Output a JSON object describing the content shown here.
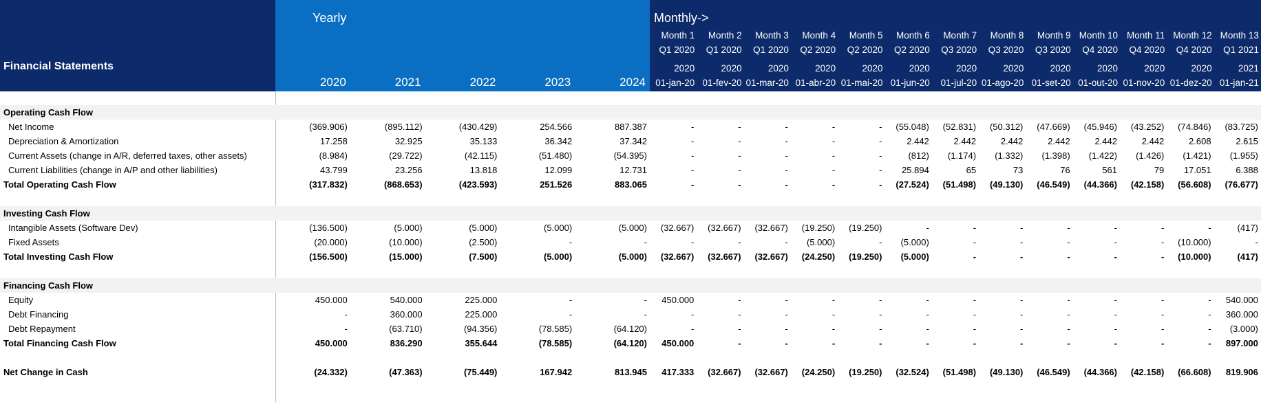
{
  "title": "Financial Statements",
  "yearly_label": "Yearly",
  "monthly_label": "Monthly->",
  "years": [
    "2020",
    "2021",
    "2022",
    "2023",
    "2024"
  ],
  "months": [
    {
      "name": "Month 1",
      "quarter": "Q1 2020",
      "year": "2020",
      "date": "01-jan-20"
    },
    {
      "name": "Month 2",
      "quarter": "Q1 2020",
      "year": "2020",
      "date": "01-fev-20"
    },
    {
      "name": "Month 3",
      "quarter": "Q1 2020",
      "year": "2020",
      "date": "01-mar-20"
    },
    {
      "name": "Month 4",
      "quarter": "Q2 2020",
      "year": "2020",
      "date": "01-abr-20"
    },
    {
      "name": "Month 5",
      "quarter": "Q2 2020",
      "year": "2020",
      "date": "01-mai-20"
    },
    {
      "name": "Month 6",
      "quarter": "Q2 2020",
      "year": "2020",
      "date": "01-jun-20"
    },
    {
      "name": "Month 7",
      "quarter": "Q3 2020",
      "year": "2020",
      "date": "01-jul-20"
    },
    {
      "name": "Month 8",
      "quarter": "Q3 2020",
      "year": "2020",
      "date": "01-ago-20"
    },
    {
      "name": "Month 9",
      "quarter": "Q3 2020",
      "year": "2020",
      "date": "01-set-20"
    },
    {
      "name": "Month 10",
      "quarter": "Q4 2020",
      "year": "2020",
      "date": "01-out-20"
    },
    {
      "name": "Month 11",
      "quarter": "Q4 2020",
      "year": "2020",
      "date": "01-nov-20"
    },
    {
      "name": "Month 12",
      "quarter": "Q4 2020",
      "year": "2020",
      "date": "01-dez-20"
    },
    {
      "name": "Month 13",
      "quarter": "Q1 2021",
      "year": "2021",
      "date": "01-jan-21"
    }
  ],
  "sections": [
    {
      "title": "Operating Cash Flow",
      "rows": [
        {
          "label": "Net Income",
          "values": [
            "(369.906)",
            "(895.112)",
            "(430.429)",
            "254.566",
            "887.387",
            "-",
            "-",
            "-",
            "-",
            "-",
            "(55.048)",
            "(52.831)",
            "(50.312)",
            "(47.669)",
            "(45.946)",
            "(43.252)",
            "(74.846)",
            "(83.725)"
          ]
        },
        {
          "label": "Depreciation & Amortization",
          "values": [
            "17.258",
            "32.925",
            "35.133",
            "36.342",
            "37.342",
            "-",
            "-",
            "-",
            "-",
            "-",
            "2.442",
            "2.442",
            "2.442",
            "2.442",
            "2.442",
            "2.442",
            "2.608",
            "2.615"
          ]
        },
        {
          "label": "Current Assets (change in A/R, deferred taxes, other assets)",
          "values": [
            "(8.984)",
            "(29.722)",
            "(42.115)",
            "(51.480)",
            "(54.395)",
            "-",
            "-",
            "-",
            "-",
            "-",
            "(812)",
            "(1.174)",
            "(1.332)",
            "(1.398)",
            "(1.422)",
            "(1.426)",
            "(1.421)",
            "(1.955)"
          ]
        },
        {
          "label": "Current Liabilities (change in A/P and other liabilities)",
          "values": [
            "43.799",
            "23.256",
            "13.818",
            "12.099",
            "12.731",
            "-",
            "-",
            "-",
            "-",
            "-",
            "25.894",
            "65",
            "73",
            "76",
            "561",
            "79",
            "17.051",
            "6.388"
          ]
        }
      ],
      "total": {
        "label": "Total Operating Cash Flow",
        "values": [
          "(317.832)",
          "(868.653)",
          "(423.593)",
          "251.526",
          "883.065",
          "-",
          "-",
          "-",
          "-",
          "-",
          "(27.524)",
          "(51.498)",
          "(49.130)",
          "(46.549)",
          "(44.366)",
          "(42.158)",
          "(56.608)",
          "(76.677)"
        ]
      }
    },
    {
      "title": "Investing Cash Flow",
      "rows": [
        {
          "label": "Intangible Assets (Software Dev)",
          "values": [
            "(136.500)",
            "(5.000)",
            "(5.000)",
            "(5.000)",
            "(5.000)",
            "(32.667)",
            "(32.667)",
            "(32.667)",
            "(19.250)",
            "(19.250)",
            "-",
            "-",
            "-",
            "-",
            "-",
            "-",
            "-",
            "(417)"
          ]
        },
        {
          "label": "Fixed Assets",
          "values": [
            "(20.000)",
            "(10.000)",
            "(2.500)",
            "-",
            "-",
            "-",
            "-",
            "-",
            "(5.000)",
            "-",
            "(5.000)",
            "-",
            "-",
            "-",
            "-",
            "-",
            "(10.000)",
            "-"
          ]
        }
      ],
      "total": {
        "label": "Total Investing Cash Flow",
        "values": [
          "(156.500)",
          "(15.000)",
          "(7.500)",
          "(5.000)",
          "(5.000)",
          "(32.667)",
          "(32.667)",
          "(32.667)",
          "(24.250)",
          "(19.250)",
          "(5.000)",
          "-",
          "-",
          "-",
          "-",
          "-",
          "(10.000)",
          "(417)"
        ]
      }
    },
    {
      "title": "Financing Cash Flow",
      "rows": [
        {
          "label": "Equity",
          "values": [
            "450.000",
            "540.000",
            "225.000",
            "-",
            "-",
            "450.000",
            "-",
            "-",
            "-",
            "-",
            "-",
            "-",
            "-",
            "-",
            "-",
            "-",
            "-",
            "540.000"
          ]
        },
        {
          "label": "Debt Financing",
          "values": [
            "-",
            "360.000",
            "225.000",
            "-",
            "-",
            "-",
            "-",
            "-",
            "-",
            "-",
            "-",
            "-",
            "-",
            "-",
            "-",
            "-",
            "-",
            "360.000"
          ]
        },
        {
          "label": "Debt Repayment",
          "values": [
            "-",
            "(63.710)",
            "(94.356)",
            "(78.585)",
            "(64.120)",
            "-",
            "-",
            "-",
            "-",
            "-",
            "-",
            "-",
            "-",
            "-",
            "-",
            "-",
            "-",
            "(3.000)"
          ]
        }
      ],
      "total": {
        "label": "Total Financing Cash Flow",
        "values": [
          "450.000",
          "836.290",
          "355.644",
          "(78.585)",
          "(64.120)",
          "450.000",
          "-",
          "-",
          "-",
          "-",
          "-",
          "-",
          "-",
          "-",
          "-",
          "-",
          "-",
          "897.000"
        ]
      }
    }
  ],
  "net_change": {
    "label": "Net Change in Cash",
    "values": [
      "(24.332)",
      "(47.363)",
      "(75.449)",
      "167.942",
      "813.945",
      "417.333",
      "(32.667)",
      "(32.667)",
      "(24.250)",
      "(19.250)",
      "(32.524)",
      "(51.498)",
      "(49.130)",
      "(46.549)",
      "(44.366)",
      "(42.158)",
      "(66.608)",
      "819.906"
    ]
  }
}
